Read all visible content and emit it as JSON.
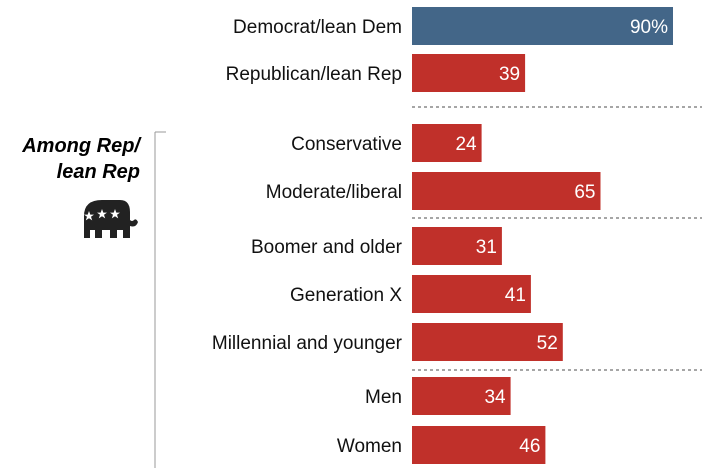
{
  "chart_data": {
    "type": "bar",
    "orientation": "horizontal",
    "categories": [
      "Democrat/lean Dem",
      "Republican/lean Rep",
      "Conservative",
      "Moderate/liberal",
      "Boomer and older",
      "Generation X",
      "Millennial and younger",
      "Men",
      "Women"
    ],
    "values": [
      90,
      39,
      24,
      65,
      31,
      41,
      52,
      34,
      46
    ],
    "labels": [
      "90%",
      "39",
      "24",
      "65",
      "31",
      "41",
      "52",
      "34",
      "46"
    ],
    "groups": [
      {
        "name": "",
        "rows": [
          0,
          1
        ]
      },
      {
        "name": "Among Rep/ lean Rep",
        "rows": [
          2,
          3,
          4,
          5,
          6,
          7,
          8
        ]
      }
    ],
    "colors": {
      "dem": "#436688",
      "rep": "#c0302a"
    },
    "group_title_lines": [
      "Among Rep/",
      "lean Rep"
    ],
    "icon": "republican-elephant-icon",
    "xlim": [
      0,
      100
    ]
  }
}
